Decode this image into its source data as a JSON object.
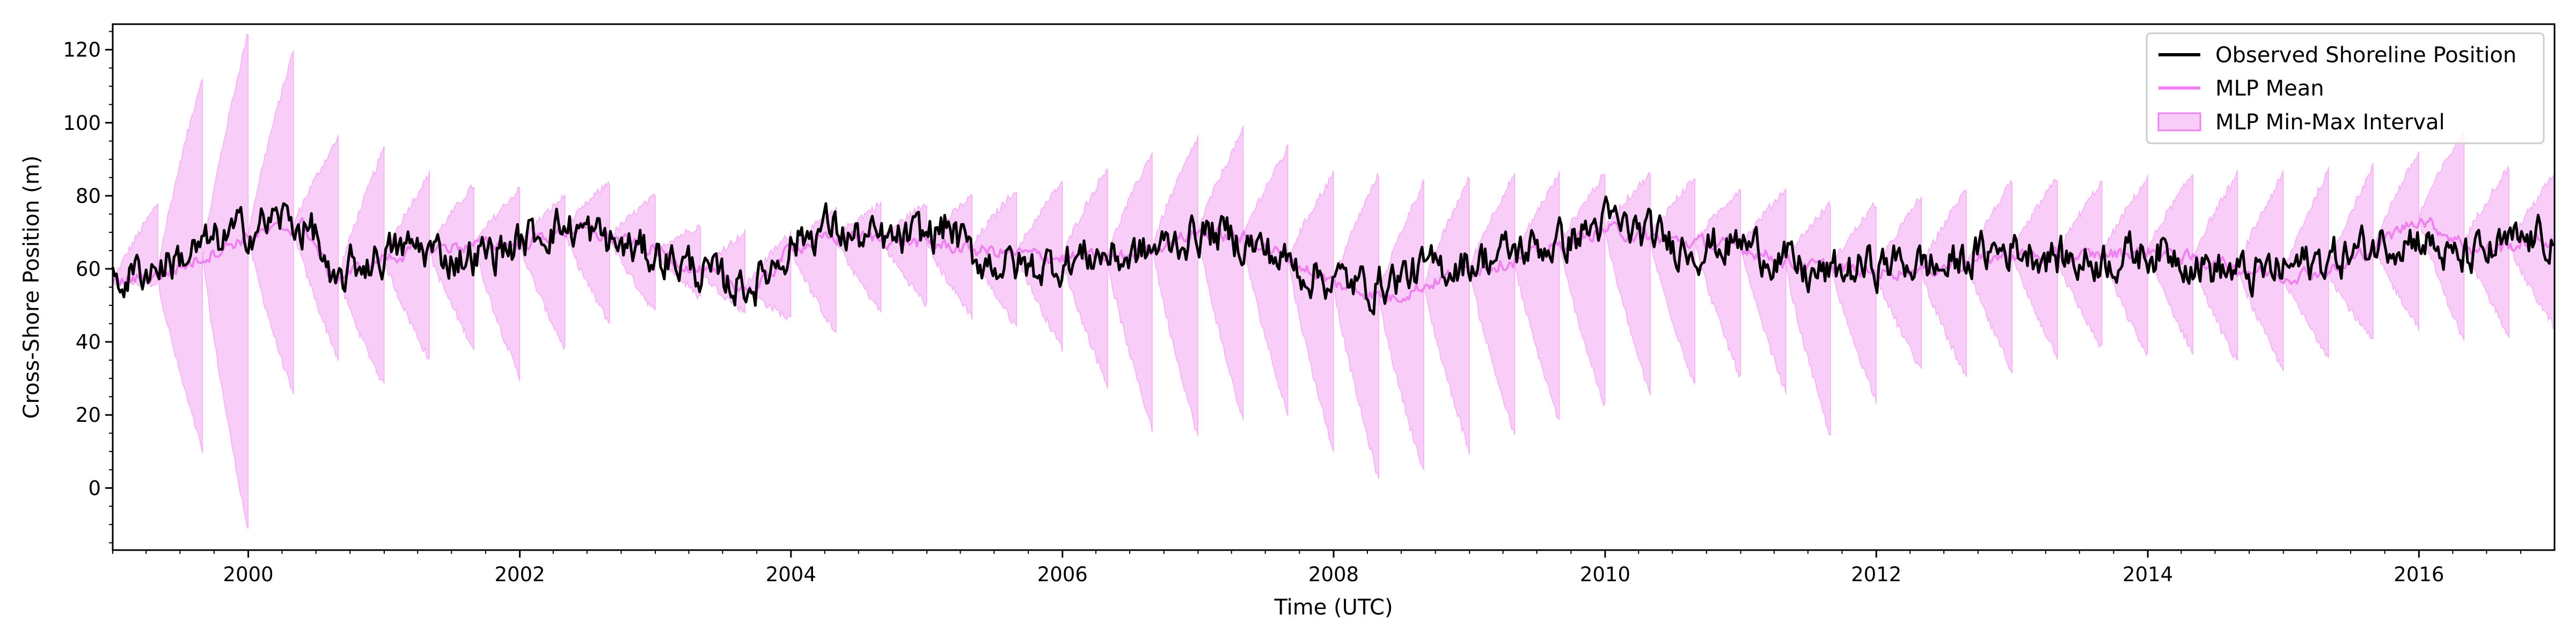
{
  "chart_data": {
    "type": "line",
    "title": "",
    "xlabel": "Time (UTC)",
    "ylabel": "Cross-Shore Position (m)",
    "xlim": [
      "1999-01-01",
      "2016-12-31"
    ],
    "ylim": [
      -17,
      127
    ],
    "x_ticks": [
      "2000",
      "2002",
      "2004",
      "2006",
      "2008",
      "2010",
      "2012",
      "2014",
      "2016"
    ],
    "y_ticks": [
      "0",
      "20",
      "40",
      "60",
      "80",
      "100",
      "120"
    ],
    "grid": false,
    "legend_placement": "top-right",
    "series": [
      {
        "name": "Observed Shoreline Position",
        "color": "#000000",
        "anchors": [
          [
            "1999-01-01",
            56
          ],
          [
            "1999-04-01",
            60
          ],
          [
            "1999-07-01",
            63
          ],
          [
            "1999-10-01",
            67
          ],
          [
            "2000-01-01",
            71
          ],
          [
            "2000-04-01",
            74
          ],
          [
            "2000-07-01",
            70
          ],
          [
            "2000-08-15",
            52
          ],
          [
            "2000-10-01",
            60
          ],
          [
            "2001-01-01",
            64
          ],
          [
            "2001-04-01",
            66
          ],
          [
            "2001-07-01",
            63
          ],
          [
            "2001-10-01",
            64
          ],
          [
            "2002-01-01",
            67
          ],
          [
            "2002-04-01",
            72
          ],
          [
            "2002-07-01",
            70
          ],
          [
            "2002-10-01",
            66
          ],
          [
            "2003-01-01",
            64
          ],
          [
            "2003-04-01",
            61
          ],
          [
            "2003-07-01",
            56
          ],
          [
            "2003-10-01",
            56
          ],
          [
            "2004-01-01",
            67
          ],
          [
            "2004-04-01",
            72
          ],
          [
            "2004-07-01",
            68
          ],
          [
            "2004-10-01",
            67
          ],
          [
            "2005-01-01",
            69
          ],
          [
            "2005-03-01",
            72
          ],
          [
            "2005-05-01",
            63
          ],
          [
            "2005-07-01",
            62
          ],
          [
            "2005-10-01",
            60
          ],
          [
            "2006-01-01",
            62
          ],
          [
            "2006-04-01",
            64
          ],
          [
            "2006-07-01",
            63
          ],
          [
            "2006-10-01",
            66
          ],
          [
            "2007-01-01",
            70
          ],
          [
            "2007-04-01",
            69
          ],
          [
            "2007-07-01",
            65
          ],
          [
            "2007-10-01",
            60
          ],
          [
            "2008-01-01",
            57
          ],
          [
            "2008-04-01",
            55
          ],
          [
            "2008-07-01",
            58
          ],
          [
            "2008-10-01",
            60
          ],
          [
            "2009-01-01",
            62
          ],
          [
            "2009-04-01",
            64
          ],
          [
            "2009-07-01",
            66
          ],
          [
            "2009-10-01",
            68
          ],
          [
            "2010-01-01",
            73
          ],
          [
            "2010-04-01",
            70
          ],
          [
            "2010-07-01",
            67
          ],
          [
            "2010-10-01",
            66
          ],
          [
            "2011-01-01",
            67
          ],
          [
            "2011-04-01",
            64
          ],
          [
            "2011-07-01",
            58
          ],
          [
            "2011-10-01",
            59
          ],
          [
            "2012-01-01",
            61
          ],
          [
            "2012-04-01",
            62
          ],
          [
            "2012-07-01",
            60
          ],
          [
            "2012-10-01",
            64
          ],
          [
            "2013-01-01",
            66
          ],
          [
            "2013-04-01",
            64
          ],
          [
            "2013-07-01",
            62
          ],
          [
            "2013-10-01",
            63
          ],
          [
            "2014-01-01",
            65
          ],
          [
            "2014-04-01",
            64
          ],
          [
            "2014-07-01",
            60
          ],
          [
            "2014-10-01",
            58
          ],
          [
            "2015-01-01",
            60
          ],
          [
            "2015-04-01",
            62
          ],
          [
            "2015-07-01",
            64
          ],
          [
            "2015-10-01",
            68
          ],
          [
            "2016-01-01",
            69
          ],
          [
            "2016-04-01",
            62
          ],
          [
            "2016-07-01",
            64
          ],
          [
            "2016-10-01",
            67
          ],
          [
            "2016-12-31",
            69
          ]
        ]
      },
      {
        "name": "MLP Mean",
        "color": "#ee82ee",
        "anchors": [
          [
            "1999-01-01",
            56
          ],
          [
            "1999-06-01",
            59
          ],
          [
            "2000-01-01",
            69
          ],
          [
            "2000-06-01",
            72
          ],
          [
            "2000-08-15",
            57
          ],
          [
            "2001-01-01",
            63
          ],
          [
            "2001-06-01",
            66
          ],
          [
            "2002-01-01",
            67
          ],
          [
            "2002-06-01",
            71
          ],
          [
            "2003-01-01",
            65
          ],
          [
            "2003-06-01",
            58
          ],
          [
            "2003-10-01",
            54
          ],
          [
            "2004-01-01",
            66
          ],
          [
            "2004-06-01",
            69
          ],
          [
            "2005-01-01",
            67
          ],
          [
            "2005-06-01",
            65
          ],
          [
            "2006-01-01",
            63
          ],
          [
            "2006-06-01",
            63
          ],
          [
            "2007-01-01",
            70
          ],
          [
            "2007-06-01",
            68
          ],
          [
            "2008-01-01",
            56
          ],
          [
            "2008-06-01",
            52
          ],
          [
            "2009-01-01",
            60
          ],
          [
            "2009-06-01",
            63
          ],
          [
            "2010-01-01",
            71
          ],
          [
            "2010-06-01",
            68
          ],
          [
            "2011-01-01",
            66
          ],
          [
            "2011-06-01",
            61
          ],
          [
            "2012-01-01",
            59
          ],
          [
            "2012-06-01",
            60
          ],
          [
            "2013-01-01",
            64
          ],
          [
            "2013-06-01",
            63
          ],
          [
            "2014-01-01",
            65
          ],
          [
            "2014-06-01",
            62
          ],
          [
            "2015-01-01",
            58
          ],
          [
            "2015-06-01",
            60
          ],
          [
            "2016-01-01",
            74
          ],
          [
            "2016-06-01",
            65
          ],
          [
            "2016-12-31",
            68
          ]
        ]
      },
      {
        "name": "MLP Min-Max Interval",
        "color": "#ee82ee",
        "fill_opacity": 0.4,
        "segment_months": 4,
        "segment_anchors": [
          [
            "1999-01-01",
            78,
            56
          ],
          [
            "1999-05-01",
            113,
            10
          ],
          [
            "1999-09-01",
            125,
            -12
          ],
          [
            "2000-01-01",
            120,
            25
          ],
          [
            "2000-05-01",
            96,
            35
          ],
          [
            "2000-09-01",
            93,
            28
          ],
          [
            "2001-01-01",
            86,
            35
          ],
          [
            "2001-05-01",
            83,
            38
          ],
          [
            "2001-09-01",
            82,
            30
          ],
          [
            "2002-01-01",
            80,
            38
          ],
          [
            "2002-05-01",
            84,
            45
          ],
          [
            "2002-09-01",
            80,
            48
          ],
          [
            "2003-01-01",
            72,
            52
          ],
          [
            "2003-05-01",
            70,
            48
          ],
          [
            "2003-09-01",
            70,
            46
          ],
          [
            "2004-01-01",
            76,
            42
          ],
          [
            "2004-05-01",
            78,
            48
          ],
          [
            "2004-09-01",
            78,
            50
          ],
          [
            "2005-01-01",
            80,
            47
          ],
          [
            "2005-05-01",
            82,
            44
          ],
          [
            "2005-09-01",
            84,
            38
          ],
          [
            "2006-01-01",
            88,
            28
          ],
          [
            "2006-05-01",
            92,
            16
          ],
          [
            "2006-09-01",
            96,
            14
          ],
          [
            "2007-01-01",
            98,
            18
          ],
          [
            "2007-05-01",
            93,
            20
          ],
          [
            "2007-09-01",
            86,
            10
          ],
          [
            "2008-01-01",
            86,
            2
          ],
          [
            "2008-05-01",
            84,
            4
          ],
          [
            "2008-09-01",
            85,
            10
          ],
          [
            "2009-01-01",
            86,
            14
          ],
          [
            "2009-05-01",
            86,
            18
          ],
          [
            "2009-09-01",
            86,
            22
          ],
          [
            "2010-01-01",
            86,
            25
          ],
          [
            "2010-05-01",
            85,
            28
          ],
          [
            "2010-09-01",
            82,
            30
          ],
          [
            "2011-01-01",
            82,
            26
          ],
          [
            "2011-05-01",
            78,
            14
          ],
          [
            "2011-09-01",
            78,
            24
          ],
          [
            "2012-01-01",
            80,
            32
          ],
          [
            "2012-05-01",
            82,
            30
          ],
          [
            "2012-09-01",
            84,
            32
          ],
          [
            "2013-01-01",
            85,
            36
          ],
          [
            "2013-05-01",
            84,
            38
          ],
          [
            "2013-09-01",
            85,
            36
          ],
          [
            "2014-01-01",
            86,
            37
          ],
          [
            "2014-05-01",
            86,
            34
          ],
          [
            "2014-09-01",
            86,
            32
          ],
          [
            "2015-01-01",
            87,
            36
          ],
          [
            "2015-05-01",
            88,
            40
          ],
          [
            "2015-09-01",
            92,
            44
          ],
          [
            "2016-01-01",
            98,
            40
          ],
          [
            "2016-05-01",
            88,
            42
          ],
          [
            "2016-09-01",
            86,
            44
          ]
        ]
      }
    ]
  }
}
